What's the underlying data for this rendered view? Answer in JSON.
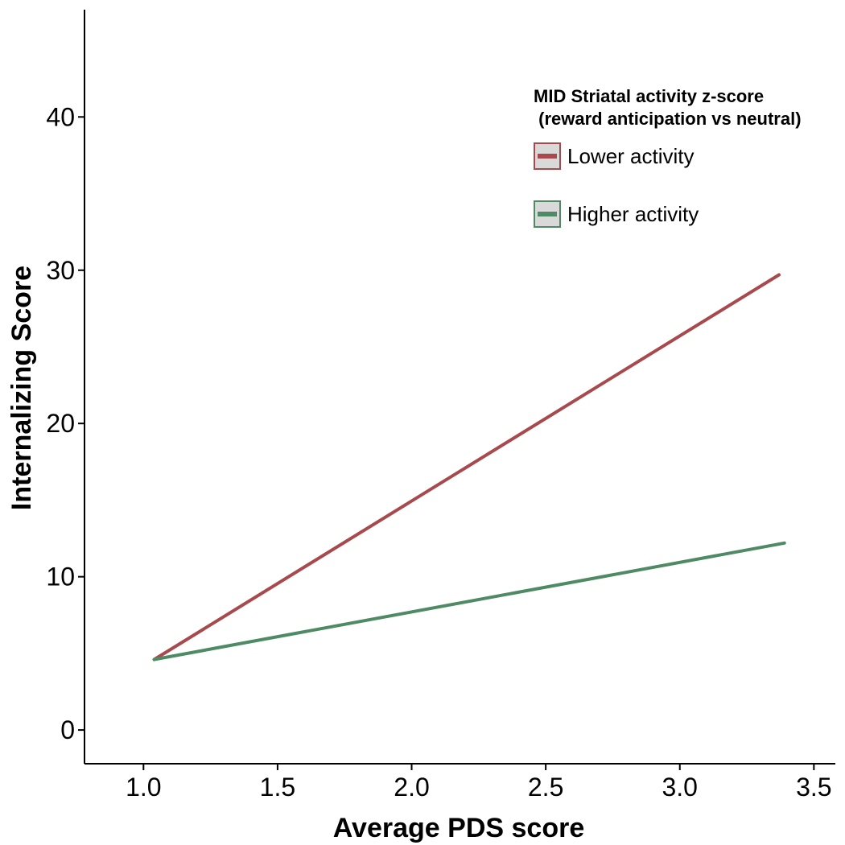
{
  "chart_data": {
    "type": "line",
    "xlabel": "Average PDS score",
    "ylabel": "Internalizing Score",
    "xlim": [
      0.78,
      3.58
    ],
    "ylim": [
      -2.2,
      47
    ],
    "xticks": [
      "1.0",
      "1.5",
      "2.0",
      "2.5",
      "3.0",
      "3.5"
    ],
    "yticks": [
      "0",
      "10",
      "20",
      "30",
      "40"
    ],
    "grid": false,
    "legend": {
      "title_lines": [
        "MID Striatal activity z-score",
        " (reward anticipation vs neutral)"
      ],
      "placement": "top-right"
    },
    "series": [
      {
        "name": "Lower activity",
        "color": "#a84a4d",
        "x": [
          1.04,
          3.37
        ],
        "y": [
          4.6,
          29.7
        ]
      },
      {
        "name": "Higher activity",
        "color": "#4e8a63",
        "x": [
          1.04,
          3.39
        ],
        "y": [
          4.6,
          12.2
        ]
      }
    ]
  }
}
